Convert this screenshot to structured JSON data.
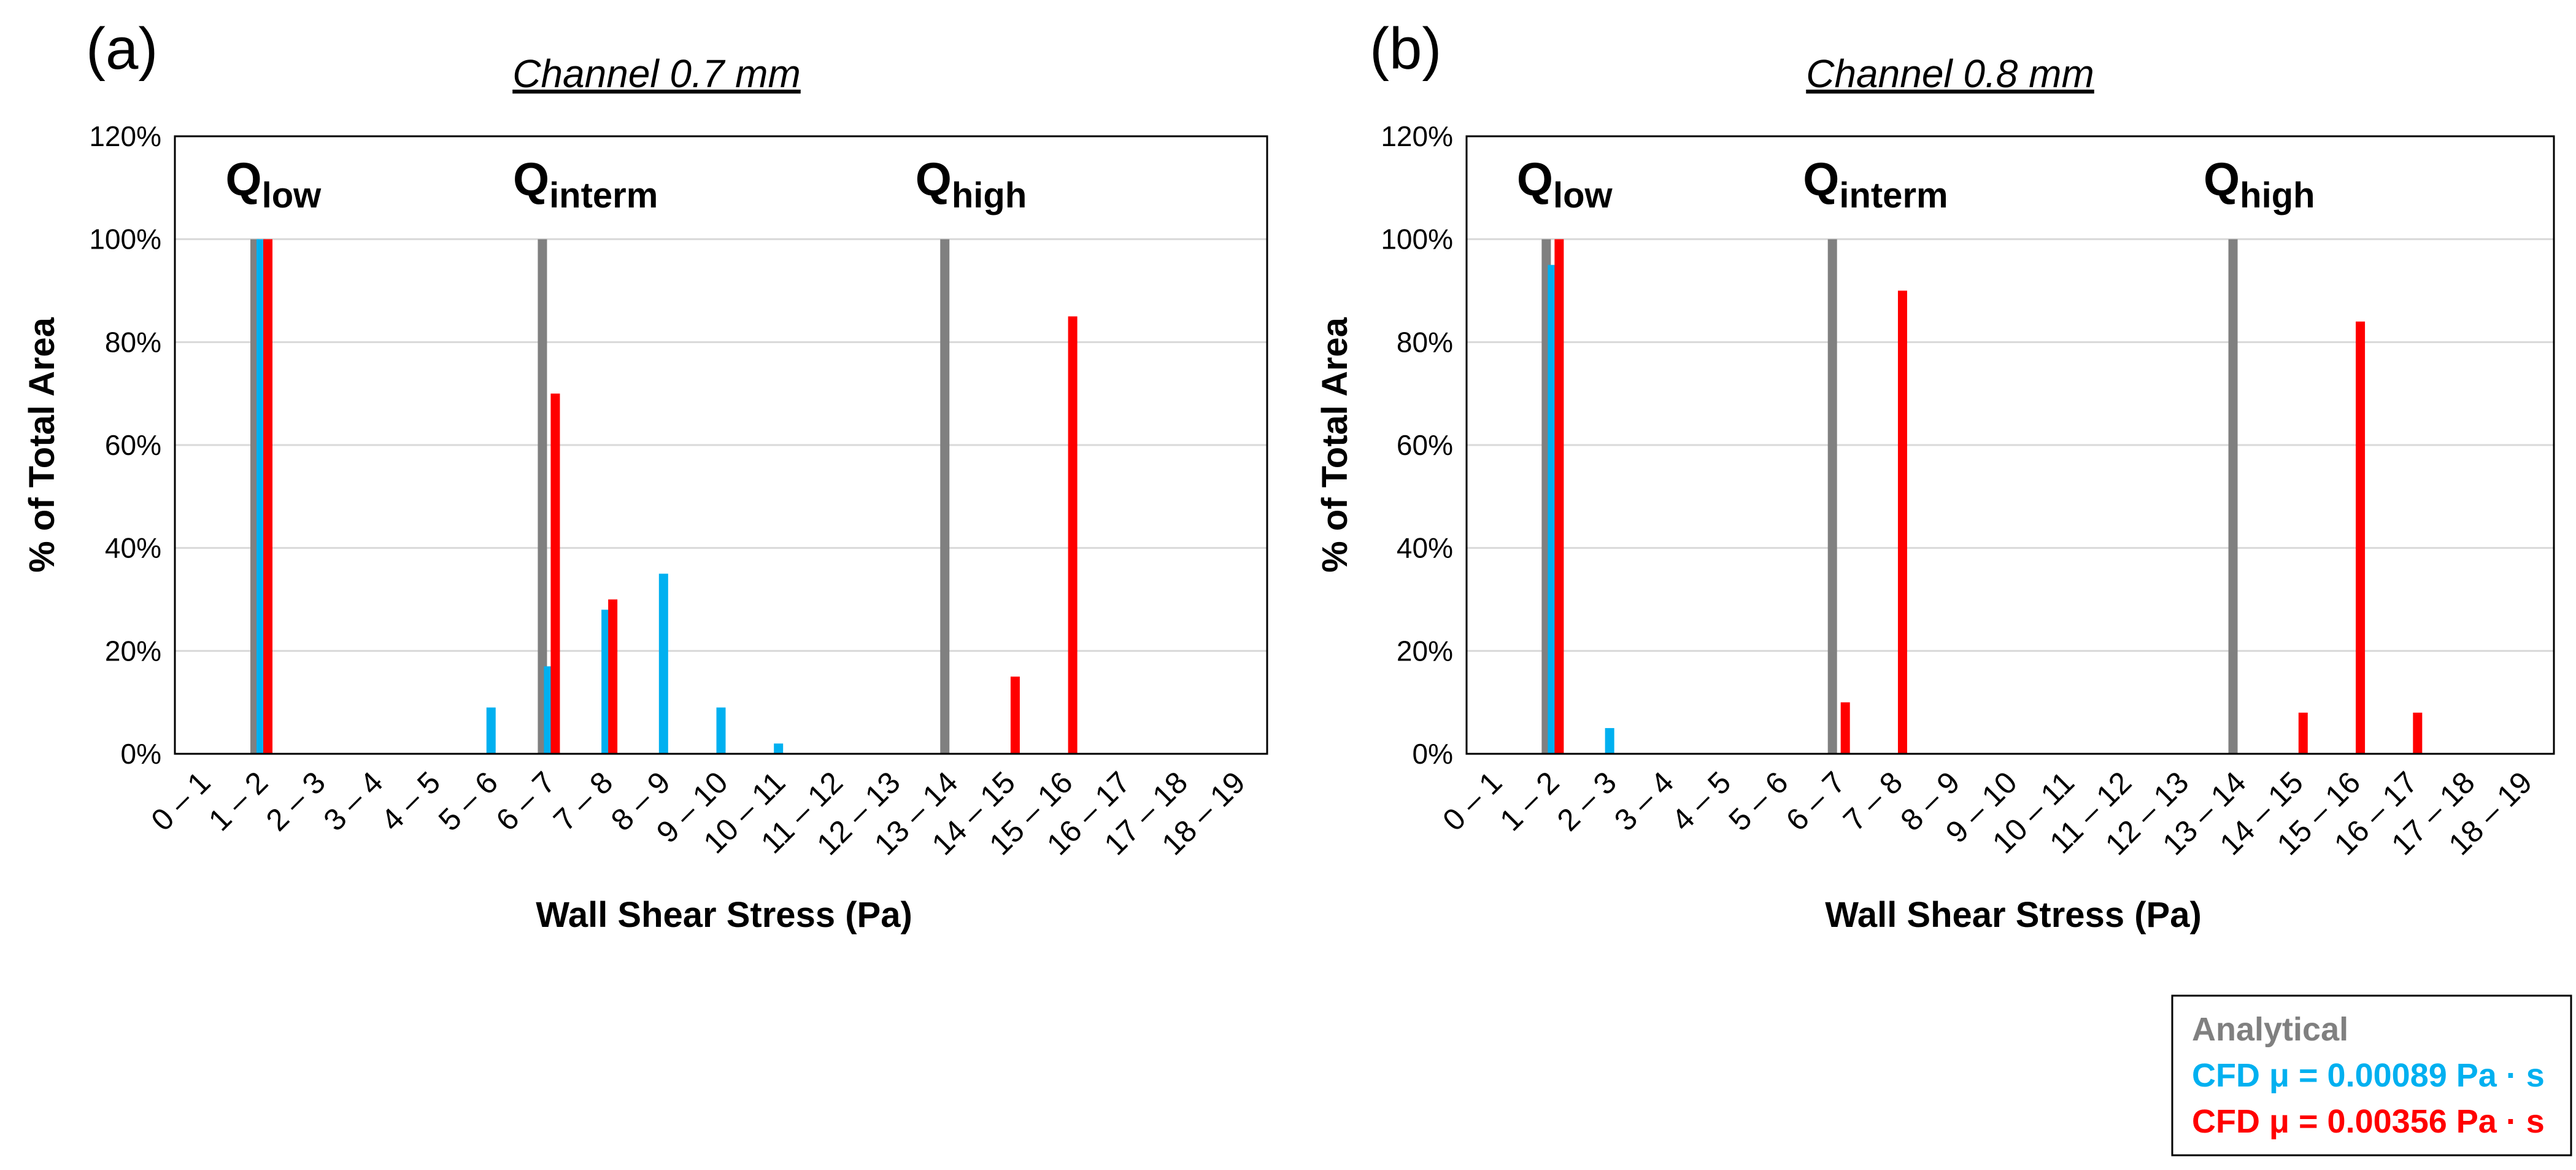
{
  "colors": {
    "analytical": "#808080",
    "cfd_low_mu": "#00B0F0",
    "cfd_high_mu": "#FF0000",
    "grid": "#D9D9D9",
    "frame": "#000000"
  },
  "legend": {
    "analytical": "Analytical",
    "cfd_low": "CFD μ = 0.00089 Pa · s",
    "cfd_high": "CFD μ = 0.00356 Pa · s"
  },
  "chart_data": [
    {
      "type": "bar",
      "panel": "(a)",
      "title": "Channel 0.7 mm",
      "xlabel": "Wall Shear Stress (Pa)",
      "ylabel": "% of Total Area",
      "ylim": [
        0,
        120
      ],
      "yticks": [
        "0%",
        "20%",
        "40%",
        "60%",
        "80%",
        "100%",
        "120%"
      ],
      "grid": true,
      "categories": [
        "0 – 1",
        "1 – 2",
        "2 – 3",
        "3 – 4",
        "4 – 5",
        "5 – 6",
        "6 – 7",
        "7 – 8",
        "8 – 9",
        "9 – 10",
        "10 – 11",
        "11 – 12",
        "12 – 13",
        "13 – 14",
        "14 – 15",
        "15 – 16",
        "16 – 17",
        "17 – 18",
        "18 – 19"
      ],
      "q_labels": [
        {
          "main": "Q",
          "sub": "low",
          "category": 1
        },
        {
          "main": "Q",
          "sub": "interm",
          "category": 6
        },
        {
          "main": "Q",
          "sub": "high",
          "category": 13
        }
      ],
      "series": [
        {
          "name": "Analytical",
          "values": [
            0,
            100,
            0,
            0,
            0,
            0,
            100,
            0,
            0,
            0,
            0,
            0,
            0,
            100,
            0,
            0,
            0,
            0,
            0
          ]
        },
        {
          "name": "CFD μ = 0.00089 Pa · s",
          "values": [
            0,
            100,
            0,
            0,
            0,
            9,
            17,
            28,
            35,
            9,
            2,
            0,
            0,
            0,
            0,
            0,
            0,
            0,
            0
          ]
        },
        {
          "name": "CFD μ = 0.00356 Pa · s",
          "values": [
            0,
            100,
            0,
            0,
            0,
            0,
            70,
            30,
            0,
            0,
            0,
            0,
            0,
            0,
            15,
            85,
            0,
            0,
            0
          ]
        }
      ]
    },
    {
      "type": "bar",
      "panel": "(b)",
      "title": "Channel 0.8 mm",
      "xlabel": "Wall Shear Stress (Pa)",
      "ylabel": "% of Total Area",
      "ylim": [
        0,
        120
      ],
      "yticks": [
        "0%",
        "20%",
        "40%",
        "60%",
        "80%",
        "100%",
        "120%"
      ],
      "grid": true,
      "categories": [
        "0 – 1",
        "1 – 2",
        "2 – 3",
        "3 – 4",
        "4 – 5",
        "5 – 6",
        "6 – 7",
        "7 – 8",
        "8 – 9",
        "9 – 10",
        "10 – 11",
        "11 – 12",
        "12 – 13",
        "13 – 14",
        "14 – 15",
        "15 – 16",
        "16 – 17",
        "17 – 18",
        "18 – 19"
      ],
      "q_labels": [
        {
          "main": "Q",
          "sub": "low",
          "category": 1
        },
        {
          "main": "Q",
          "sub": "interm",
          "category": 6
        },
        {
          "main": "Q",
          "sub": "high",
          "category": 13
        }
      ],
      "series": [
        {
          "name": "Analytical",
          "values": [
            0,
            100,
            0,
            0,
            0,
            0,
            100,
            0,
            0,
            0,
            0,
            0,
            0,
            100,
            0,
            0,
            0,
            0,
            0
          ]
        },
        {
          "name": "CFD μ = 0.00089 Pa · s",
          "values": [
            0,
            95,
            5,
            0,
            0,
            0,
            0,
            0,
            0,
            0,
            0,
            0,
            0,
            0,
            0,
            0,
            0,
            0,
            0
          ]
        },
        {
          "name": "CFD μ = 0.00356 Pa · s",
          "values": [
            0,
            100,
            0,
            0,
            0,
            0,
            10,
            90,
            0,
            0,
            0,
            0,
            0,
            0,
            8,
            84,
            8,
            0,
            0
          ]
        }
      ]
    }
  ]
}
